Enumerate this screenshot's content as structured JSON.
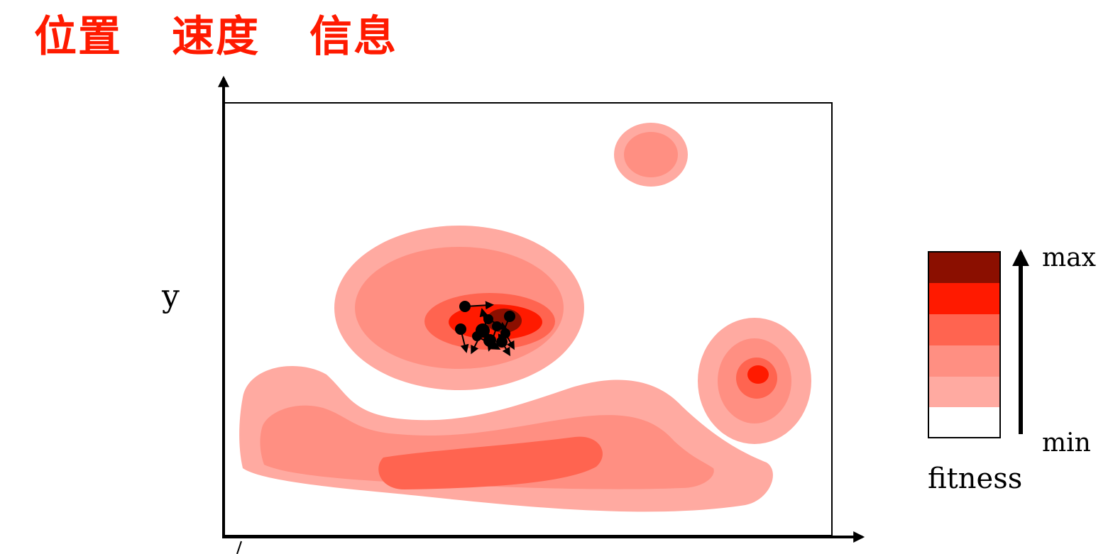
{
  "title": {
    "words": [
      "位置",
      "速度",
      "信息"
    ],
    "color": "#ff1a00"
  },
  "axes": {
    "y_label": "y",
    "x_label": ""
  },
  "fitness_legend": {
    "label": "fitness",
    "max_label": "max",
    "min_label": "min",
    "levels_from_max_to_min": [
      "#8b0f00",
      "#ff1a00",
      "#ff6450",
      "#ff8f82",
      "#ffaaa1",
      "#ffffff"
    ]
  },
  "landscape": {
    "regions": [
      "small-peak-top-right",
      "main-peak-center",
      "secondary-peak-right",
      "ridge-bottom"
    ]
  },
  "swarm": {
    "particle_count": 10,
    "converged_on": "main-peak-center"
  }
}
